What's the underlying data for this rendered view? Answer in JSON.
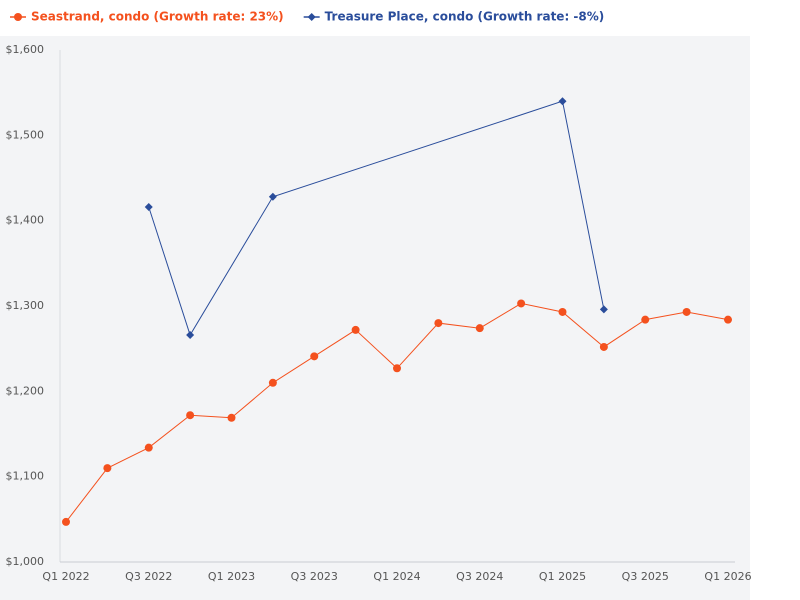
{
  "chart_data": {
    "type": "line",
    "categories": [
      "Q1 2022",
      null,
      "Q3 2022",
      null,
      "Q1 2023",
      null,
      "Q3 2023",
      null,
      "Q1 2024",
      null,
      "Q3 2024",
      null,
      "Q1 2025",
      null,
      "Q3 2025",
      null,
      "Q1 2026"
    ],
    "series": [
      {
        "name": "Seastrand, condo (Growth rate: 23%)",
        "color": "#f4511e",
        "marker": "circle",
        "values": [
          1047,
          1110,
          1134,
          1172,
          1169,
          1210,
          1241,
          1272,
          1227,
          1280,
          1274,
          1303,
          1293,
          1252,
          1284,
          1293,
          1284
        ]
      },
      {
        "name": "Treasure Place, condo (Growth rate: -8%)",
        "color": "#2a4d9b",
        "marker": "diamond",
        "values": [
          null,
          null,
          1416,
          1266,
          null,
          1428,
          null,
          null,
          null,
          null,
          null,
          null,
          1540,
          1296,
          null,
          null,
          null
        ]
      }
    ],
    "ylim": [
      1000,
      1600
    ],
    "yticks": [
      {
        "value": 1000,
        "label": "$1,000"
      },
      {
        "value": 1100,
        "label": "$1,100"
      },
      {
        "value": 1200,
        "label": "$1,200"
      },
      {
        "value": 1300,
        "label": "$1,300"
      },
      {
        "value": 1400,
        "label": "$1,400"
      },
      {
        "value": 1500,
        "label": "$1,500"
      },
      {
        "value": 1600,
        "label": "$1,600"
      }
    ],
    "connect_gaps": true,
    "legend": "top-left"
  }
}
